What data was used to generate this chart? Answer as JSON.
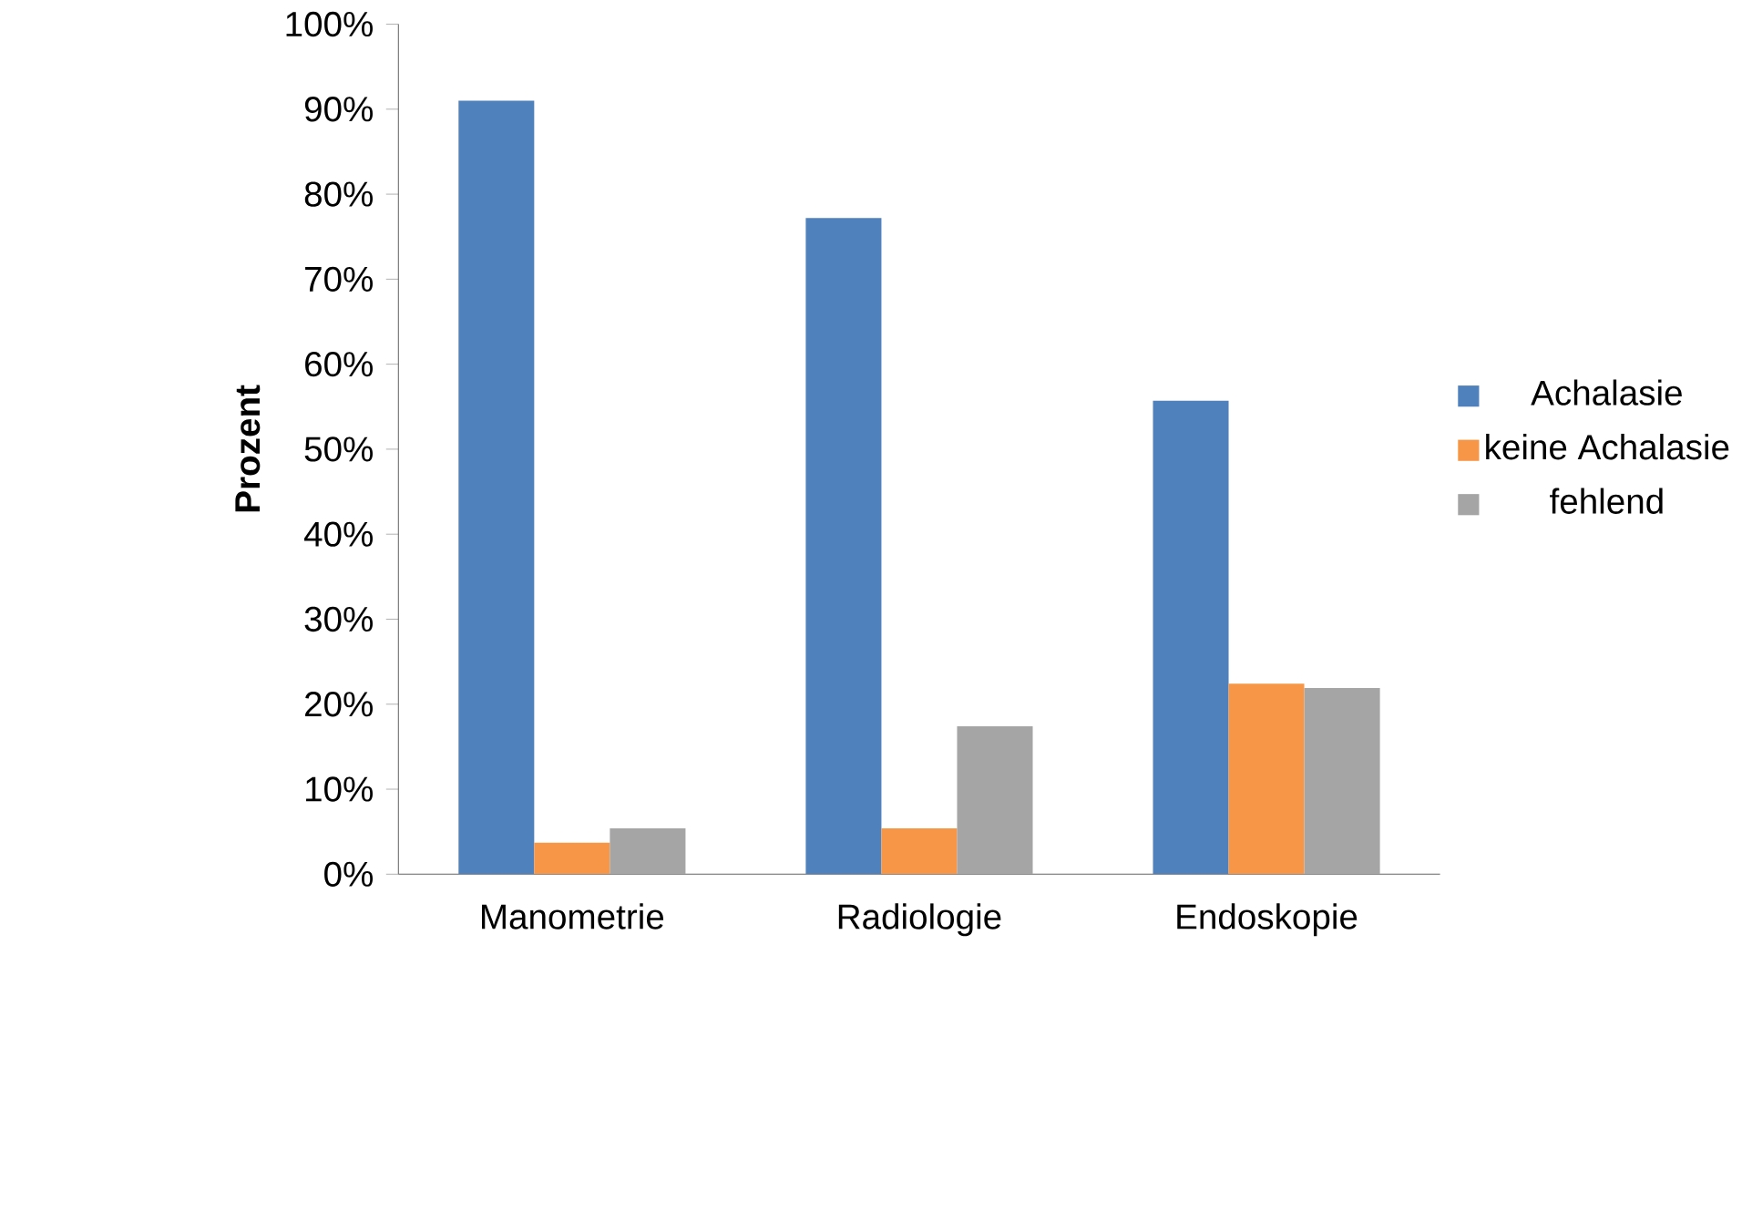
{
  "chart_data": {
    "type": "bar",
    "ylabel": "Prozent",
    "categories": [
      "Manometrie",
      "Radiologie",
      "Endoskopie"
    ],
    "series": [
      {
        "name": "Achalasie",
        "color": "#4f81bd",
        "values": [
          91.0,
          77.2,
          55.7
        ]
      },
      {
        "name": "keine Achalasie",
        "color": "#f79646",
        "values": [
          3.7,
          5.4,
          22.4
        ]
      },
      {
        "name": "fehlend",
        "color": "#a5a5a5",
        "values": [
          5.4,
          17.4,
          21.9
        ]
      }
    ],
    "ylim": [
      0,
      100
    ],
    "yticks": [
      {
        "value": 0,
        "label": "0%"
      },
      {
        "value": 10,
        "label": "10%"
      },
      {
        "value": 20,
        "label": "20%"
      },
      {
        "value": 30,
        "label": "30%"
      },
      {
        "value": 40,
        "label": "40%"
      },
      {
        "value": 50,
        "label": "50%"
      },
      {
        "value": 60,
        "label": "60%"
      },
      {
        "value": 70,
        "label": "70%"
      },
      {
        "value": 80,
        "label": "80%"
      },
      {
        "value": 90,
        "label": "90%"
      },
      {
        "value": 100,
        "label": "100%"
      }
    ],
    "grid": false,
    "legend": "right"
  }
}
